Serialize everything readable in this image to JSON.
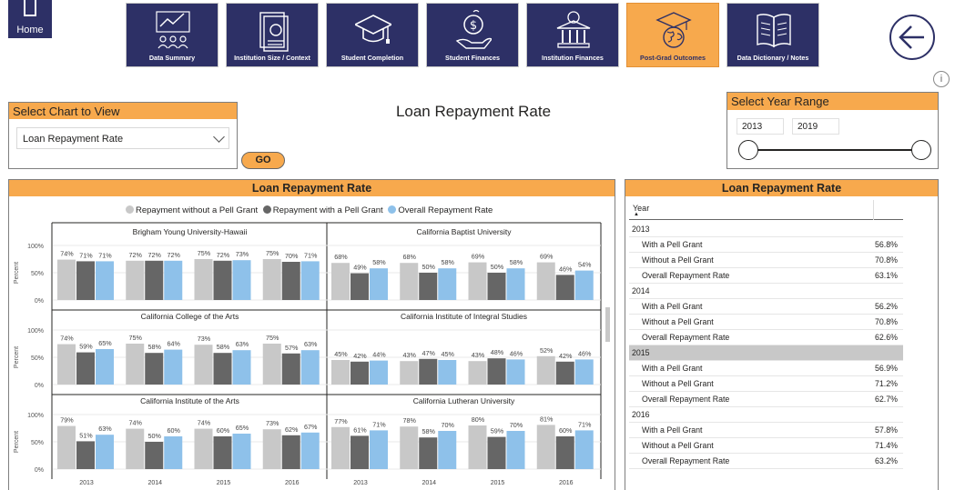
{
  "home": {
    "label": "Home"
  },
  "nav": [
    {
      "label": "Data Summary",
      "icon": "chart-people-icon",
      "active": false
    },
    {
      "label": "Institution Size / Context",
      "icon": "report-document-icon",
      "active": false
    },
    {
      "label": "Student Completion",
      "icon": "graduation-cap-icon",
      "active": false
    },
    {
      "label": "Student Finances",
      "icon": "money-hand-icon",
      "active": false
    },
    {
      "label": "Institution Finances",
      "icon": "bank-building-icon",
      "active": false
    },
    {
      "label": "Post-Grad Outcomes",
      "icon": "globe-cap-icon",
      "active": true
    },
    {
      "label": "Data Dictionary / Notes",
      "icon": "open-book-icon",
      "active": false
    }
  ],
  "select_chart": {
    "header": "Select Chart to View",
    "value": "Loan Repayment Rate",
    "go_label": "GO"
  },
  "page_title": "Loan Repayment Rate",
  "year_range": {
    "header": "Select Year Range",
    "start": "2013",
    "end": "2019"
  },
  "info_label": "i",
  "chart_panel": {
    "header": "Loan Repayment Rate"
  },
  "table_panel": {
    "header": "Loan Repayment Rate",
    "col_header": "Year"
  },
  "colors": {
    "navy": "#2d3066",
    "orange": "#f7a94d",
    "without": "#c8c8c8",
    "with": "#666666",
    "overall": "#8ec1ea"
  },
  "chart_data": {
    "type": "bar",
    "legend": [
      "Repayment without a Pell Grant",
      "Repayment with a Pell Grant",
      "Overall Repayment Rate"
    ],
    "ylabel": "Percent",
    "yticks": [
      "100%",
      "50%",
      "0%"
    ],
    "categories": [
      "2013",
      "2014",
      "2015",
      "2016"
    ],
    "panels": [
      {
        "title": "Brigham Young University-Hawaii",
        "values": [
          [
            74,
            71,
            71
          ],
          [
            72,
            72,
            72
          ],
          [
            75,
            72,
            73
          ],
          [
            75,
            70,
            71
          ]
        ]
      },
      {
        "title": "California Baptist University",
        "values": [
          [
            68,
            49,
            58
          ],
          [
            68,
            50,
            58
          ],
          [
            69,
            50,
            58
          ],
          [
            69,
            46,
            54
          ]
        ]
      },
      {
        "title": "California College of the Arts",
        "values": [
          [
            74,
            59,
            65
          ],
          [
            75,
            58,
            64
          ],
          [
            73,
            58,
            63
          ],
          [
            75,
            57,
            63
          ]
        ]
      },
      {
        "title": "California Institute of Integral Studies",
        "values": [
          [
            45,
            42,
            44
          ],
          [
            43,
            47,
            45
          ],
          [
            43,
            48,
            46
          ],
          [
            52,
            42,
            46
          ]
        ]
      },
      {
        "title": "California Institute of the Arts",
        "values": [
          [
            79,
            51,
            63
          ],
          [
            74,
            50,
            60
          ],
          [
            74,
            60,
            65
          ],
          [
            73,
            62,
            67
          ]
        ]
      },
      {
        "title": "California Lutheran University",
        "values": [
          [
            77,
            61,
            71
          ],
          [
            78,
            58,
            70
          ],
          [
            80,
            59,
            70
          ],
          [
            81,
            60,
            71
          ]
        ]
      }
    ]
  },
  "table": [
    {
      "year": "2013",
      "highlight": false,
      "rows": [
        [
          "With a Pell Grant",
          "56.8%"
        ],
        [
          "Without a Pell Grant",
          "70.8%"
        ],
        [
          "Overall Repayment Rate",
          "63.1%"
        ]
      ]
    },
    {
      "year": "2014",
      "highlight": false,
      "rows": [
        [
          "With a Pell Grant",
          "56.2%"
        ],
        [
          "Without a Pell Grant",
          "70.8%"
        ],
        [
          "Overall Repayment Rate",
          "62.6%"
        ]
      ]
    },
    {
      "year": "2015",
      "highlight": true,
      "rows": [
        [
          "With a Pell Grant",
          "56.9%"
        ],
        [
          "Without a Pell Grant",
          "71.2%"
        ],
        [
          "Overall Repayment Rate",
          "62.7%"
        ]
      ]
    },
    {
      "year": "2016",
      "highlight": false,
      "rows": [
        [
          "With a Pell Grant",
          "57.8%"
        ],
        [
          "Without a Pell Grant",
          "71.4%"
        ],
        [
          "Overall Repayment Rate",
          "63.2%"
        ]
      ]
    }
  ]
}
